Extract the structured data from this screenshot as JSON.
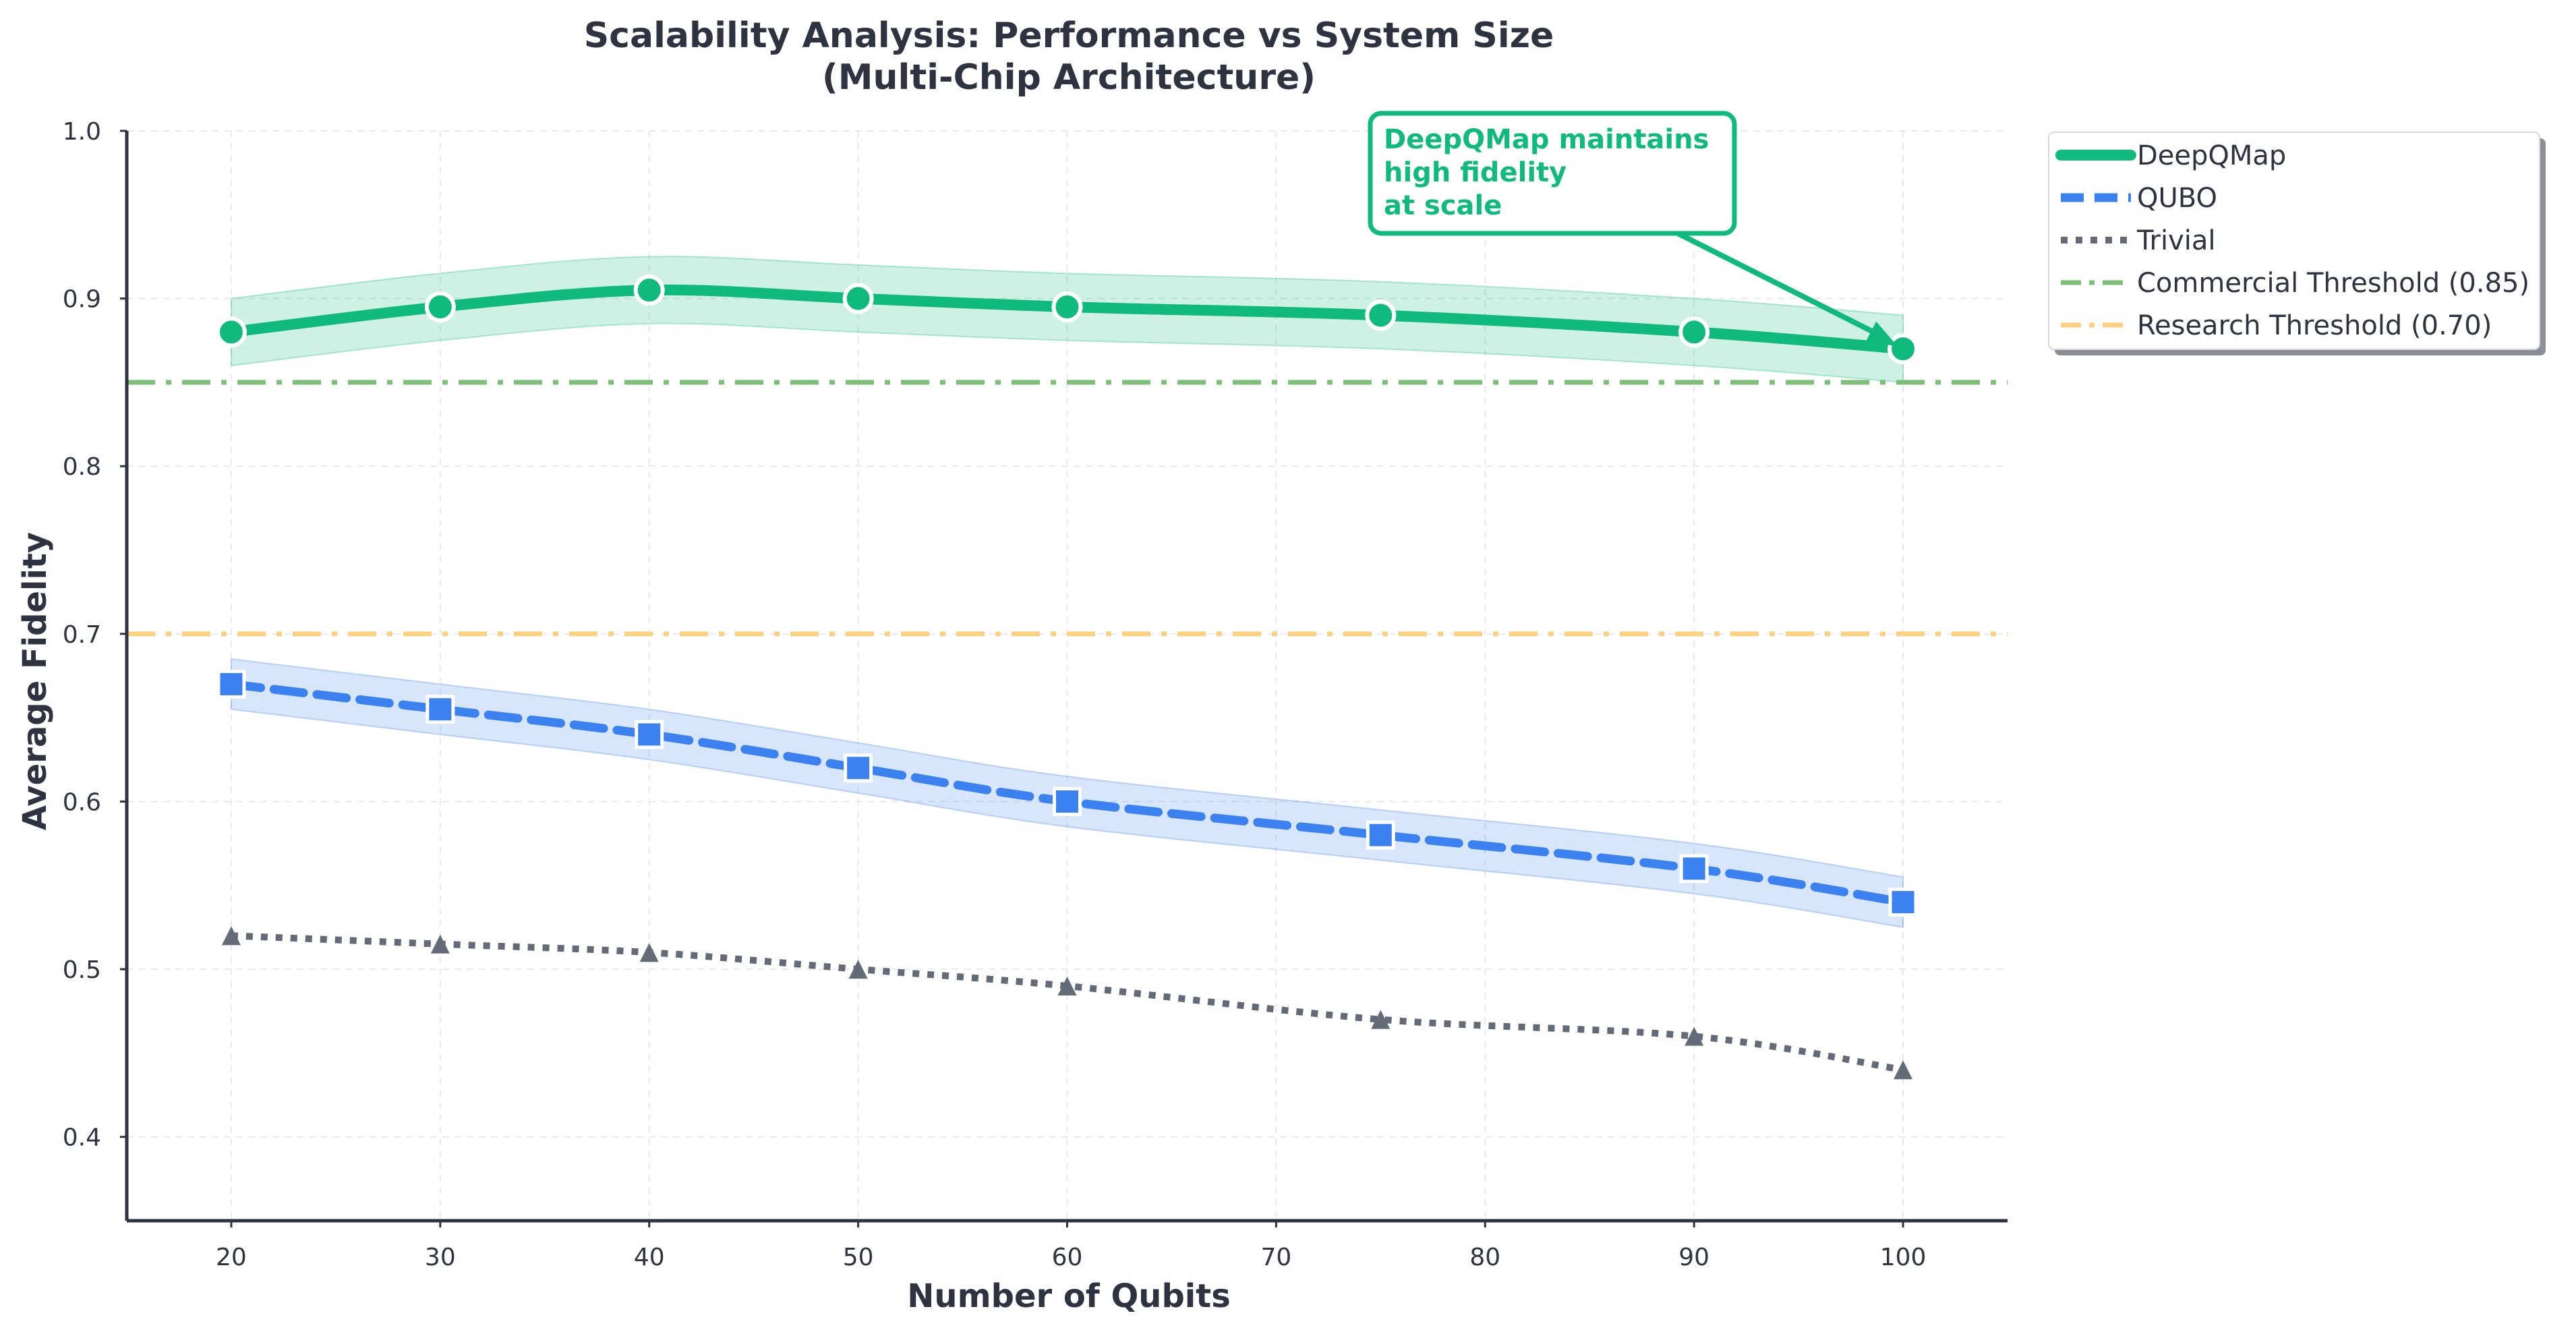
{
  "chart_data": {
    "type": "line",
    "title": "Scalability Analysis: Performance vs System Size",
    "subtitle": "(Multi-Chip Architecture)",
    "xlabel": "Number of Qubits",
    "ylabel": "Average Fidelity",
    "xlim": [
      15,
      105
    ],
    "ylim": [
      0.35,
      1.0
    ],
    "xticks": [
      "20",
      "30",
      "40",
      "50",
      "60",
      "70",
      "80",
      "90",
      "100"
    ],
    "yticks": [
      "0.4",
      "0.5",
      "0.6",
      "0.7",
      "0.8",
      "0.9",
      "1.0"
    ],
    "grid": true,
    "legend_position": "outside-top-right",
    "x": [
      20,
      30,
      40,
      50,
      60,
      75,
      90,
      100
    ],
    "series": [
      {
        "name": "DeepQMap",
        "values": [
          0.88,
          0.895,
          0.905,
          0.9,
          0.895,
          0.89,
          0.88,
          0.87
        ],
        "lower": [
          0.86,
          0.875,
          0.885,
          0.88,
          0.875,
          0.87,
          0.86,
          0.85
        ],
        "upper": [
          0.9,
          0.915,
          0.925,
          0.92,
          0.915,
          0.91,
          0.9,
          0.89
        ],
        "color": "#10b97c",
        "marker": "circle",
        "line_style": "solid"
      },
      {
        "name": "QUBO",
        "values": [
          0.67,
          0.655,
          0.64,
          0.62,
          0.6,
          0.58,
          0.56,
          0.54
        ],
        "lower": [
          0.655,
          0.64,
          0.625,
          0.605,
          0.585,
          0.565,
          0.545,
          0.525
        ],
        "upper": [
          0.685,
          0.67,
          0.655,
          0.635,
          0.615,
          0.595,
          0.575,
          0.555
        ],
        "color": "#3b82f0",
        "marker": "square",
        "line_style": "dashed"
      },
      {
        "name": "Trivial",
        "values": [
          0.52,
          0.515,
          0.51,
          0.5,
          0.49,
          0.47,
          0.46,
          0.44
        ],
        "color": "#646b78",
        "marker": "triangle",
        "line_style": "dotted"
      }
    ],
    "thresholds": [
      {
        "name": "Commercial Threshold (0.85)",
        "value": 0.85,
        "color": "#7dbf78"
      },
      {
        "name": "Research Threshold (0.70)",
        "value": 0.7,
        "color": "#fcd07e"
      }
    ],
    "annotation": {
      "lines": [
        "DeepQMap maintains",
        "high fidelity",
        "at scale"
      ],
      "target_x": 100,
      "target_y": 0.87,
      "color": "#10b97c"
    }
  }
}
